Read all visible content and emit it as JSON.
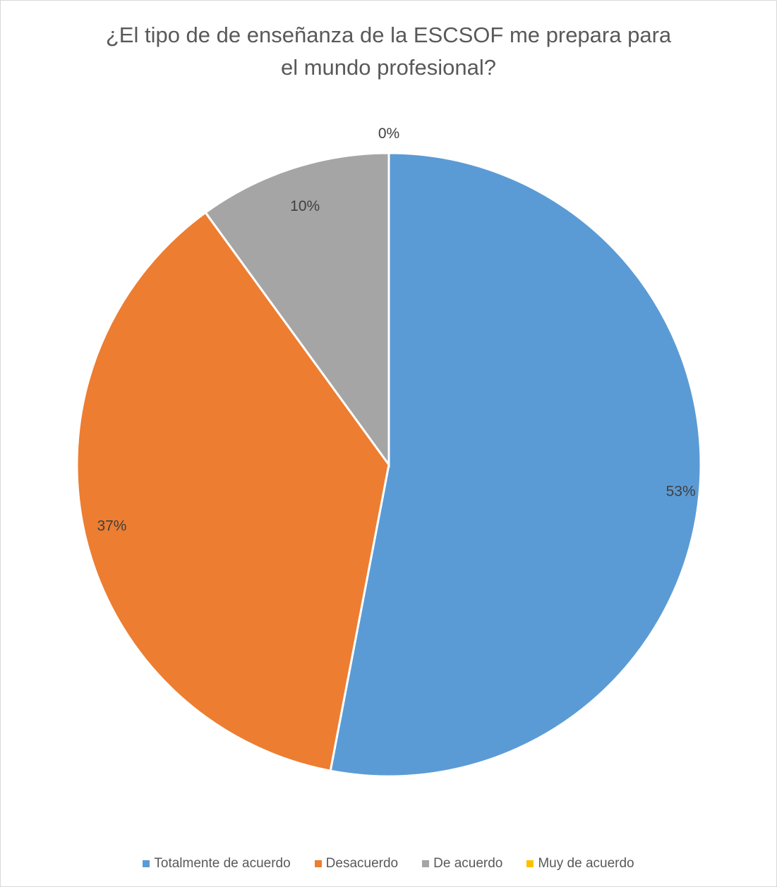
{
  "chart_data": {
    "type": "pie",
    "title": "¿El tipo de de enseñanza de la ESCSOF me prepara para el mundo profesional?",
    "title_lines": [
      "¿El tipo de de enseñanza de la ESCSOF me prepara para",
      "el mundo profesional?"
    ],
    "categories": [
      "Totalmente de acuerdo",
      "Desacuerdo",
      "De acuerdo",
      "Muy de acuerdo"
    ],
    "values": [
      53,
      37,
      10,
      0
    ],
    "labels": [
      "53%",
      "37%",
      "10%",
      "0%"
    ],
    "colors": [
      "#5b9bd5",
      "#ed7d31",
      "#a5a5a5",
      "#ffc000"
    ],
    "legend_position": "bottom"
  }
}
